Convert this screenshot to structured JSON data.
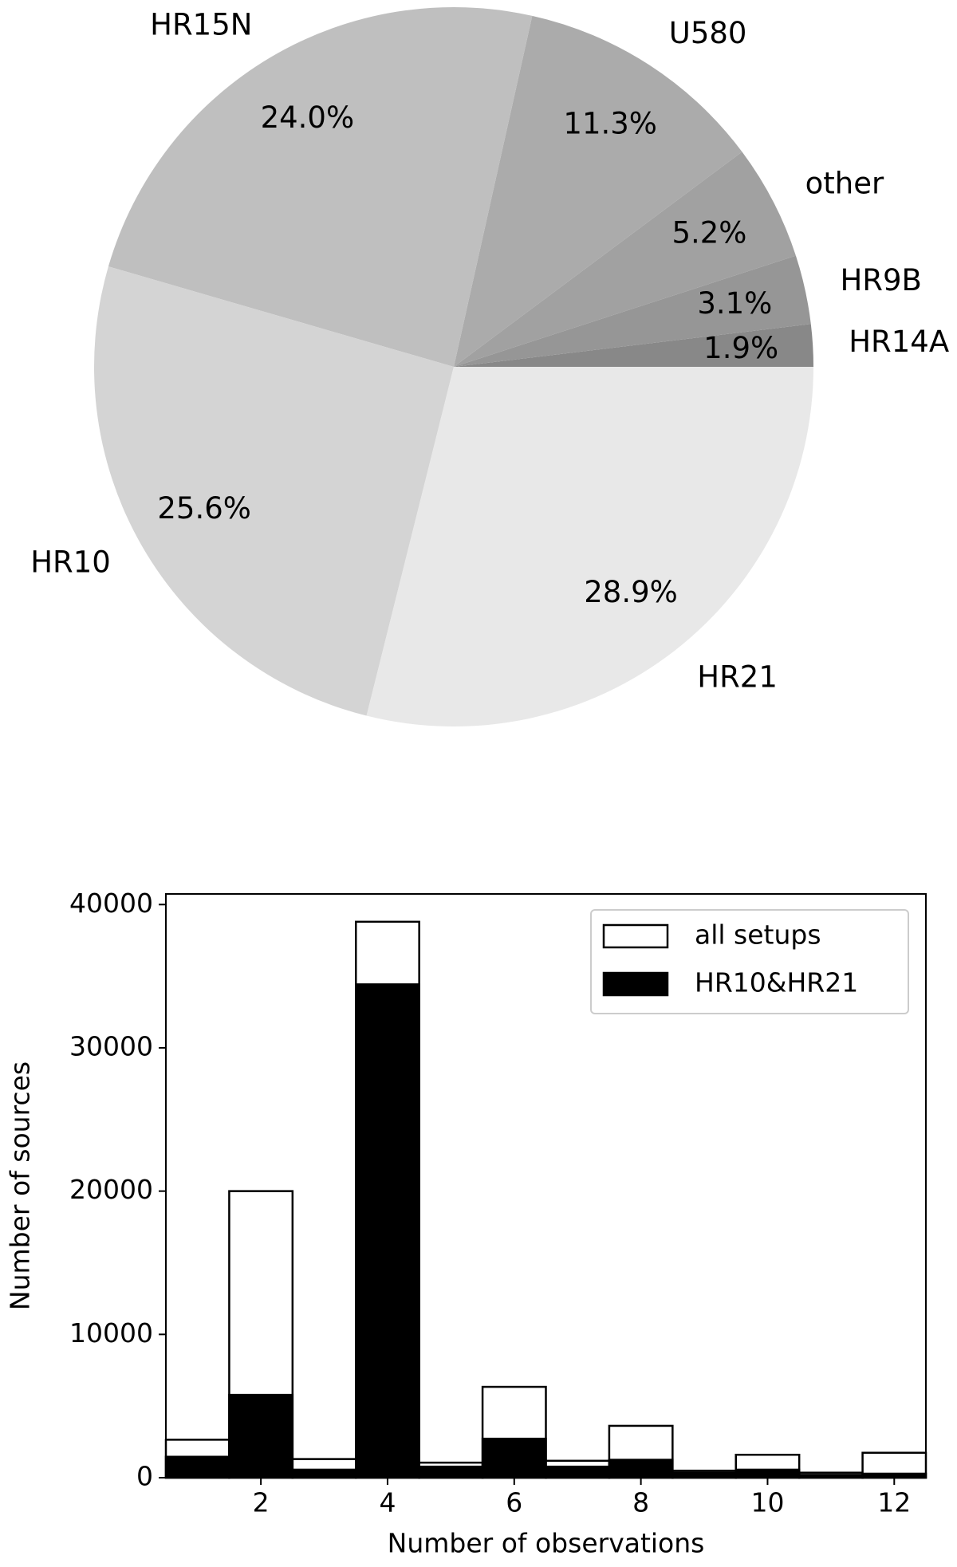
{
  "chart_data": [
    {
      "type": "pie",
      "categories": [
        "HR14A",
        "HR9B",
        "other",
        "U580",
        "HR15N",
        "HR10",
        "HR21"
      ],
      "values": [
        1.9,
        3.1,
        5.2,
        11.3,
        24.0,
        25.6,
        28.9
      ],
      "value_labels": [
        "1.9%",
        "3.1%",
        "5.2%",
        "11.3%",
        "24.0%",
        "25.6%",
        "28.9%"
      ],
      "colors": [
        "#888888",
        "#969696",
        "#a1a1a1",
        "#ababab",
        "#bfbfbf",
        "#d4d4d4",
        "#e8e8e8"
      ]
    },
    {
      "type": "histogram",
      "xlabel": "Number of observations",
      "ylabel": "Number of sources",
      "bins": [
        0.5,
        1.5,
        2.5,
        3.5,
        4.5,
        5.5,
        6.5,
        7.5,
        8.5,
        9.5,
        10.5,
        11.5,
        12.5
      ],
      "series": [
        {
          "name": "all setups",
          "color": "#ffffff",
          "edgecolor": "#000000",
          "values": [
            2650,
            20000,
            1300,
            38800,
            1050,
            6340,
            1180,
            3620,
            490,
            1600,
            350,
            1740
          ]
        },
        {
          "name": "HR10&HR21",
          "color": "#000000",
          "edgecolor": "#000000",
          "values": [
            1460,
            5780,
            560,
            34430,
            770,
            2720,
            770,
            1250,
            350,
            560,
            200,
            280
          ]
        }
      ],
      "xlim": [
        0.5,
        12.5
      ],
      "ylim": [
        0,
        40740
      ],
      "xticks": [
        2,
        4,
        6,
        8,
        10,
        12
      ],
      "yticks": [
        0,
        10000,
        20000,
        30000,
        40000
      ],
      "legend": "upper right"
    }
  ]
}
